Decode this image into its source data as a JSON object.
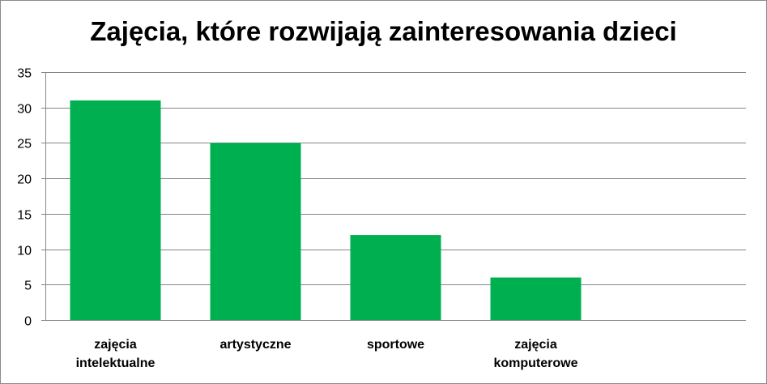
{
  "chart_data": {
    "type": "bar",
    "title": "Zajęcia, które rozwijają zainteresowania dzieci",
    "categories": [
      [
        "zajęcia",
        "intelektualne"
      ],
      [
        "artystyczne"
      ],
      [
        "sportowe"
      ],
      [
        "zajęcia",
        "komputerowe"
      ]
    ],
    "values": [
      31,
      25,
      12,
      6
    ],
    "ylim": [
      0,
      35
    ],
    "yticks": [
      0,
      5,
      10,
      15,
      20,
      25,
      30,
      35
    ],
    "grid": true,
    "bar_color": "#00b050",
    "grid_color": "#868686",
    "xlabel": "",
    "ylabel": ""
  }
}
